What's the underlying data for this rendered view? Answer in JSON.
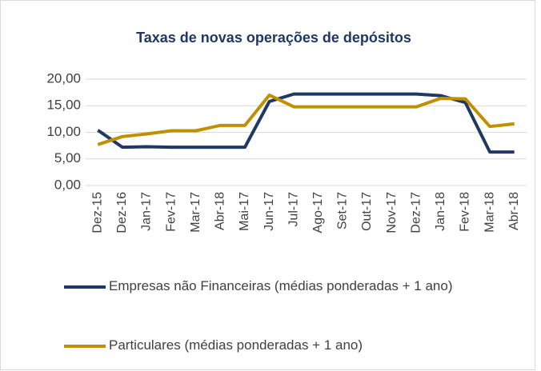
{
  "chart_data": {
    "type": "line",
    "title": "Taxas de novas operações de depósitos",
    "categories": [
      "Dez-15",
      "Dez-16",
      "Jan-17",
      "Fev-17",
      "Mar-17",
      "Abr-18",
      "Mai-17",
      "Jun-17",
      "Jul-17",
      "Ago-17",
      "Set-17",
      "Out-17",
      "Nov-17",
      "Dez-17",
      "Jan-18",
      "Fev-18",
      "Mar-18",
      "Abr-18"
    ],
    "series": [
      {
        "name": "Empresas não Financeiras (médias ponderadas + 1 ano)",
        "color": "#1f3864",
        "values": [
          10.4,
          7.2,
          7.3,
          7.2,
          7.2,
          7.2,
          7.2,
          15.8,
          17.2,
          17.2,
          17.2,
          17.2,
          17.2,
          17.2,
          16.9,
          15.6,
          6.3,
          6.3
        ]
      },
      {
        "name": "Particulares (médias ponderadas + 1 ano)",
        "color": "#bf9000",
        "values": [
          7.7,
          9.2,
          9.7,
          10.3,
          10.3,
          11.3,
          11.3,
          17.0,
          14.8,
          14.8,
          14.8,
          14.8,
          14.8,
          14.8,
          16.4,
          16.3,
          11.1,
          11.6
        ]
      }
    ],
    "ylim": [
      0,
      20
    ],
    "yticks": [
      {
        "value": 0,
        "label": "0,00"
      },
      {
        "value": 5,
        "label": "5,00"
      },
      {
        "value": 10,
        "label": "10,00"
      },
      {
        "value": 15,
        "label": "15,00"
      },
      {
        "value": 20,
        "label": "20,00"
      }
    ],
    "grid": true,
    "legend": "bottom"
  }
}
